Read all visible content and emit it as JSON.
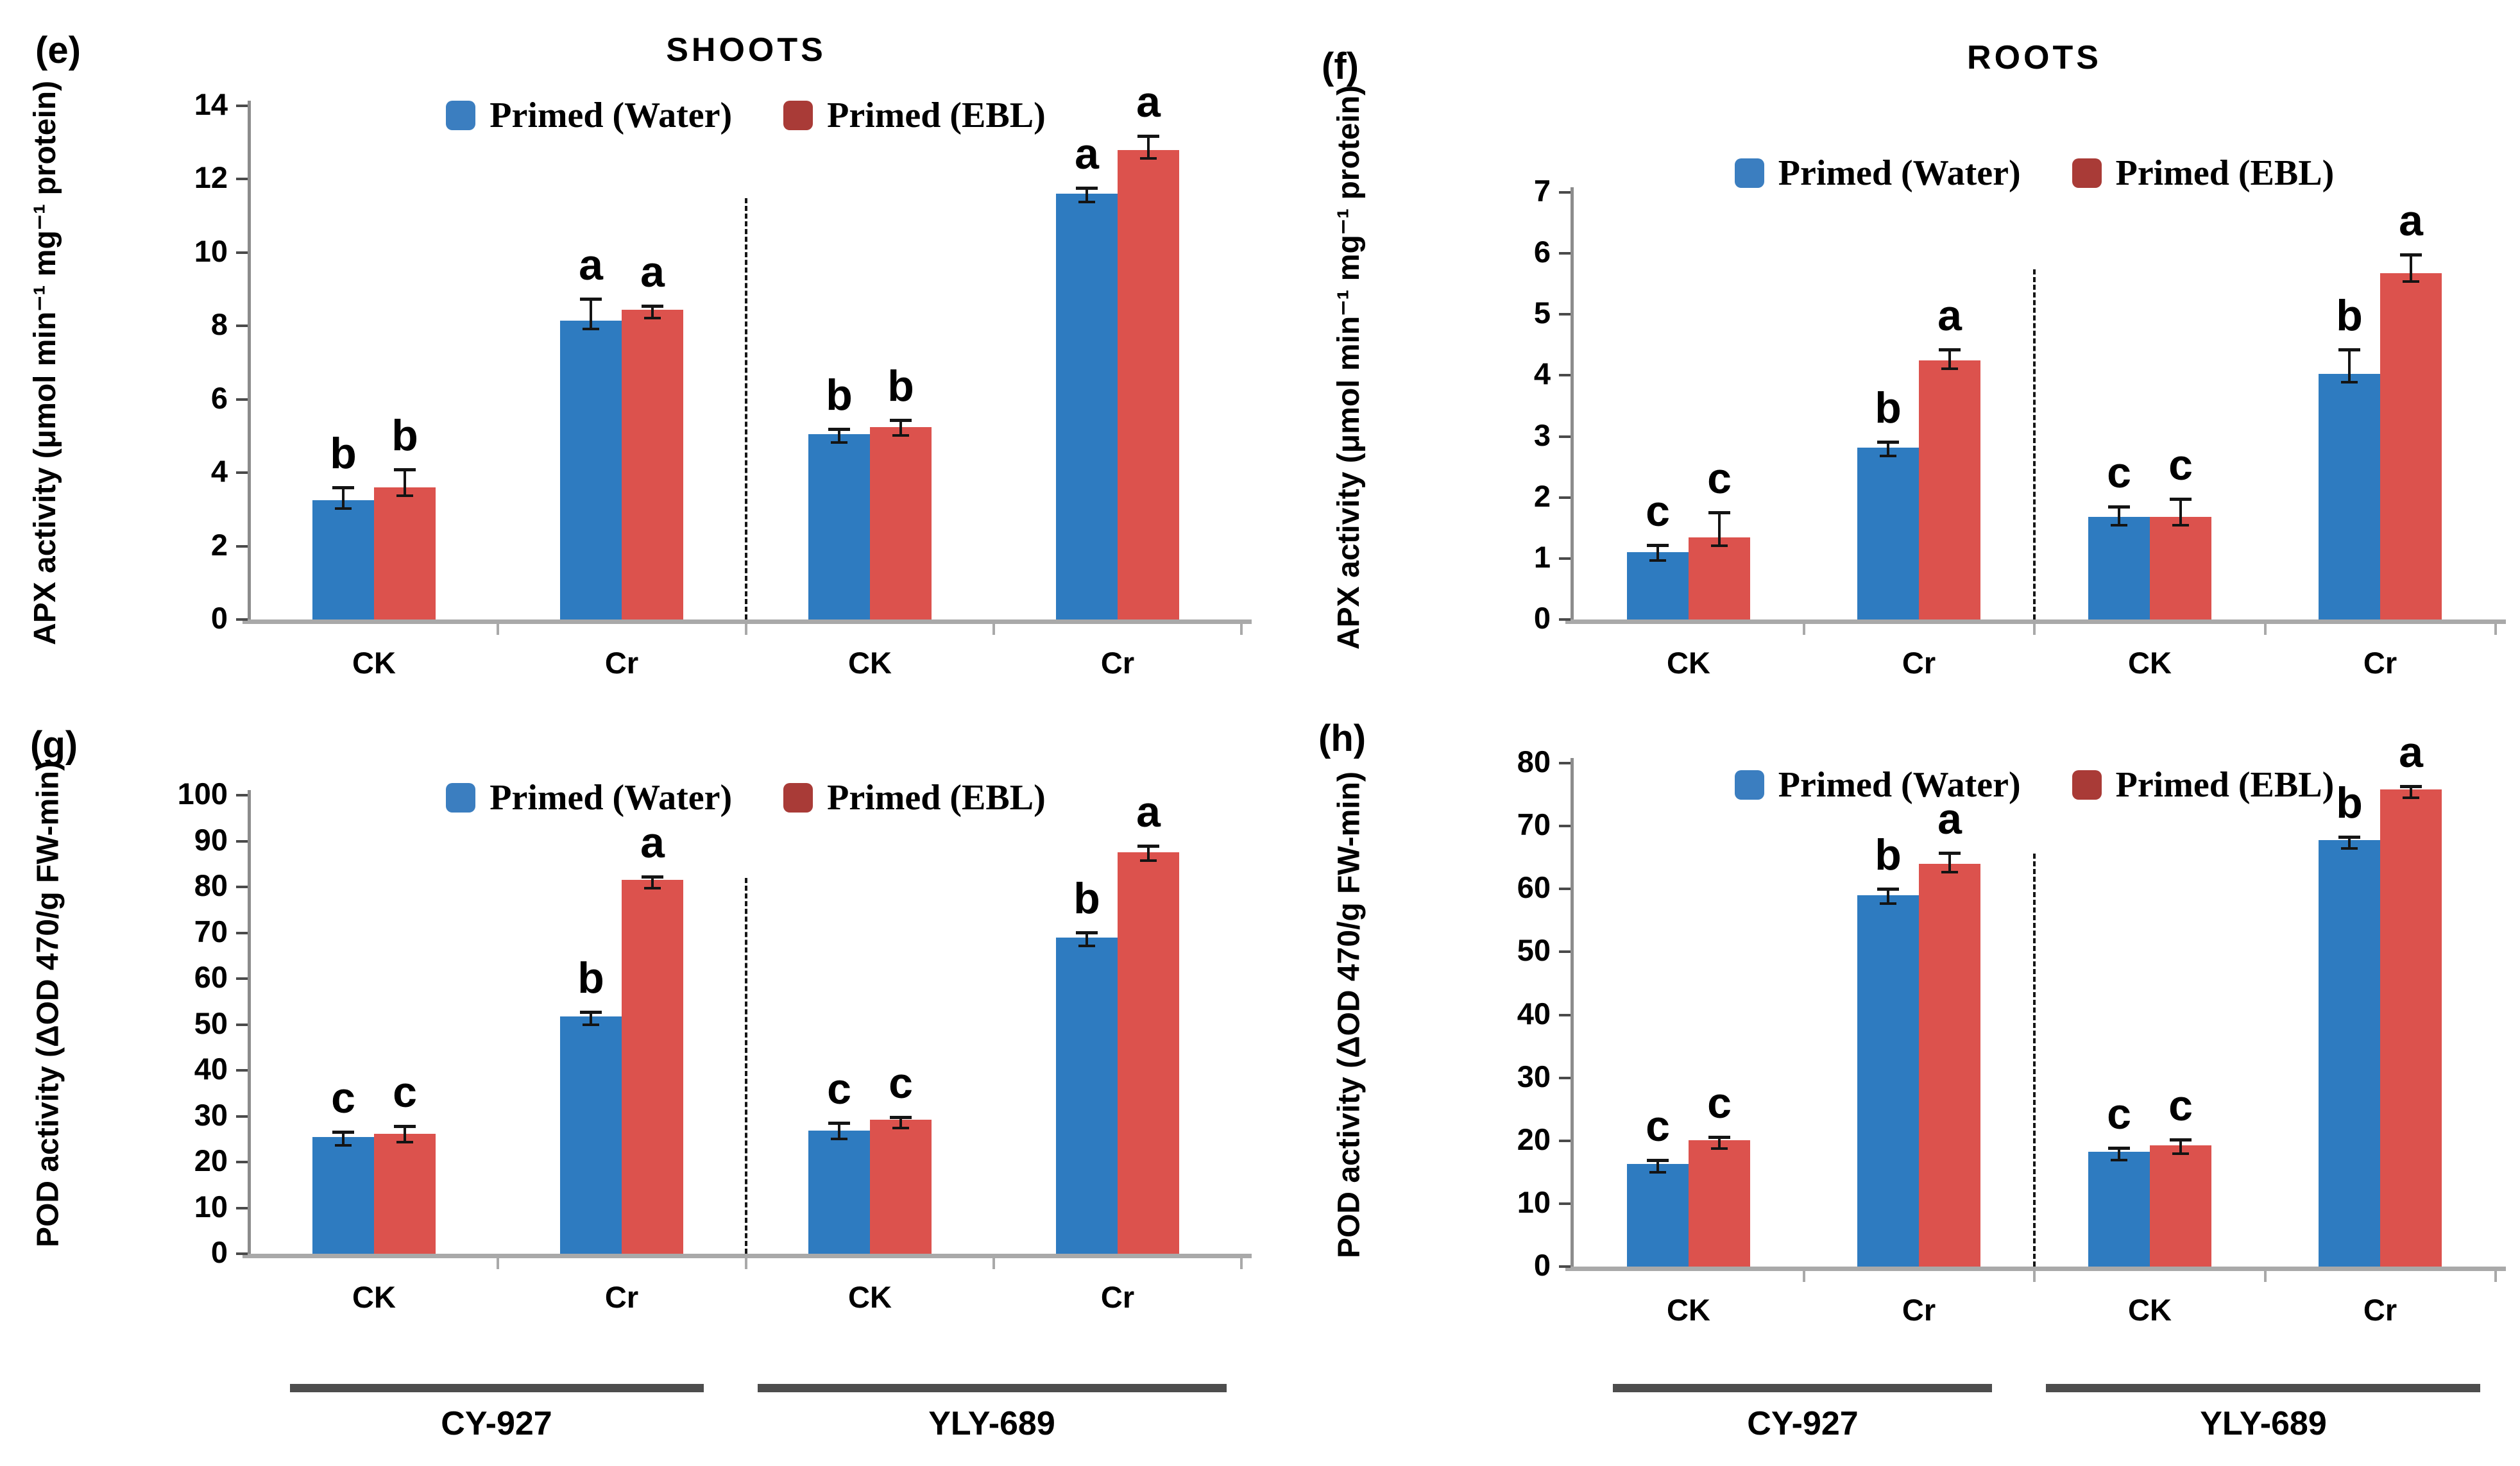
{
  "figure": {
    "colors": {
      "bar_water": "#2E7BC0",
      "bar_ebl": "#DC524D",
      "legend_water": "#3B7EC0",
      "legend_ebl": "#A93B37",
      "y_axis": "#8C8C8C",
      "x_axis": "#A9A9A9",
      "tick": "#4A4A4A",
      "error": "#141414",
      "divider": "#161616",
      "bracket": "#4D4D4D",
      "text": "#000000"
    },
    "legend_labels": [
      "Primed (Water)",
      "Primed (EBL)"
    ],
    "variety_labels": [
      "CY-927",
      "YLY-689"
    ]
  },
  "chart_data": [
    {
      "id": "e",
      "letter": "(e)",
      "type": "bar",
      "title": "SHOOTS",
      "ylabel": "APX activity (μmol min⁻¹ mg⁻¹ protein)",
      "xlabel": "",
      "ylim": [
        0,
        14
      ],
      "yticks": [
        0,
        2,
        4,
        6,
        8,
        10,
        12,
        14
      ],
      "grid": false,
      "legend_position": "top-center",
      "categories": [
        "CK",
        "Cr",
        "CK",
        "Cr"
      ],
      "series": [
        {
          "name": "Primed (Water)",
          "values": [
            3.25,
            8.15,
            5.05,
            11.6
          ],
          "errors": [
            0.32,
            0.55,
            0.1,
            0.12
          ],
          "letters": [
            "b",
            "a",
            "b",
            "a"
          ]
        },
        {
          "name": "Primed (EBL)",
          "values": [
            3.6,
            8.45,
            5.25,
            12.8
          ],
          "errors": [
            0.45,
            0.07,
            0.15,
            0.35
          ],
          "letters": [
            "b",
            "a",
            "b",
            "a"
          ]
        }
      ],
      "variety_labels": []
    },
    {
      "id": "f",
      "letter": "(f)",
      "type": "bar",
      "title": "ROOTS",
      "ylabel": "APX activity (μmol min⁻¹ mg⁻¹ protein)",
      "xlabel": "",
      "ylim": [
        0,
        7
      ],
      "yticks": [
        0,
        1,
        2,
        3,
        4,
        5,
        6,
        7
      ],
      "grid": false,
      "legend_position": "top-center",
      "categories": [
        "CK",
        "Cr",
        "CK",
        "Cr"
      ],
      "series": [
        {
          "name": "Primed (Water)",
          "values": [
            1.1,
            2.82,
            1.68,
            4.03
          ],
          "errors": [
            0.1,
            0.07,
            0.15,
            0.37
          ],
          "letters": [
            "c",
            "b",
            "c",
            "b"
          ]
        },
        {
          "name": "Primed (EBL)",
          "values": [
            1.35,
            4.25,
            1.68,
            5.68
          ],
          "errors": [
            0.38,
            0.15,
            0.27,
            0.28
          ],
          "letters": [
            "c",
            "a",
            "c",
            "a"
          ]
        }
      ],
      "variety_labels": []
    },
    {
      "id": "g",
      "letter": "(g)",
      "type": "bar",
      "title": "",
      "ylabel": "POD activity (ΔOD 470/g FW-min)",
      "xlabel": "",
      "ylim": [
        0,
        100
      ],
      "yticks": [
        0,
        10,
        20,
        30,
        40,
        50,
        60,
        70,
        80,
        90,
        100
      ],
      "grid": false,
      "legend_position": "top-center",
      "categories": [
        "CK",
        "Cr",
        "CK",
        "Cr"
      ],
      "series": [
        {
          "name": "Primed (Water)",
          "values": [
            25.5,
            51.8,
            26.8,
            69.0
          ],
          "errors": [
            0.8,
            0.7,
            1.5,
            0.8
          ],
          "letters": [
            "c",
            "b",
            "c",
            "b"
          ]
        },
        {
          "name": "Primed (EBL)",
          "values": [
            26.2,
            81.5,
            29.2,
            87.5
          ],
          "errors": [
            1.3,
            0.5,
            0.3,
            1.2
          ],
          "letters": [
            "c",
            "a",
            "c",
            "a"
          ]
        }
      ],
      "variety_labels": [
        "CY-927",
        "YLY-689"
      ]
    },
    {
      "id": "h",
      "letter": "(h)",
      "type": "bar",
      "title": "",
      "ylabel": "POD activity (ΔOD 470/g FW-min)",
      "xlabel": "",
      "ylim": [
        0,
        80
      ],
      "yticks": [
        0,
        10,
        20,
        30,
        40,
        50,
        60,
        70,
        80
      ],
      "grid": false,
      "legend_position": "top-center",
      "categories": [
        "CK",
        "Cr",
        "CK",
        "Cr"
      ],
      "series": [
        {
          "name": "Primed (Water)",
          "values": [
            16.3,
            59.0,
            18.2,
            67.8
          ],
          "errors": [
            0.4,
            0.8,
            0.4,
            0.3
          ],
          "letters": [
            "c",
            "b",
            "c",
            "b"
          ]
        },
        {
          "name": "Primed (EBL)",
          "values": [
            20.1,
            64.0,
            19.3,
            75.8
          ],
          "errors": [
            0.3,
            1.5,
            0.7,
            0.3
          ],
          "letters": [
            "c",
            "a",
            "c",
            "a"
          ]
        }
      ],
      "variety_labels": [
        "CY-927",
        "YLY-689"
      ]
    }
  ]
}
